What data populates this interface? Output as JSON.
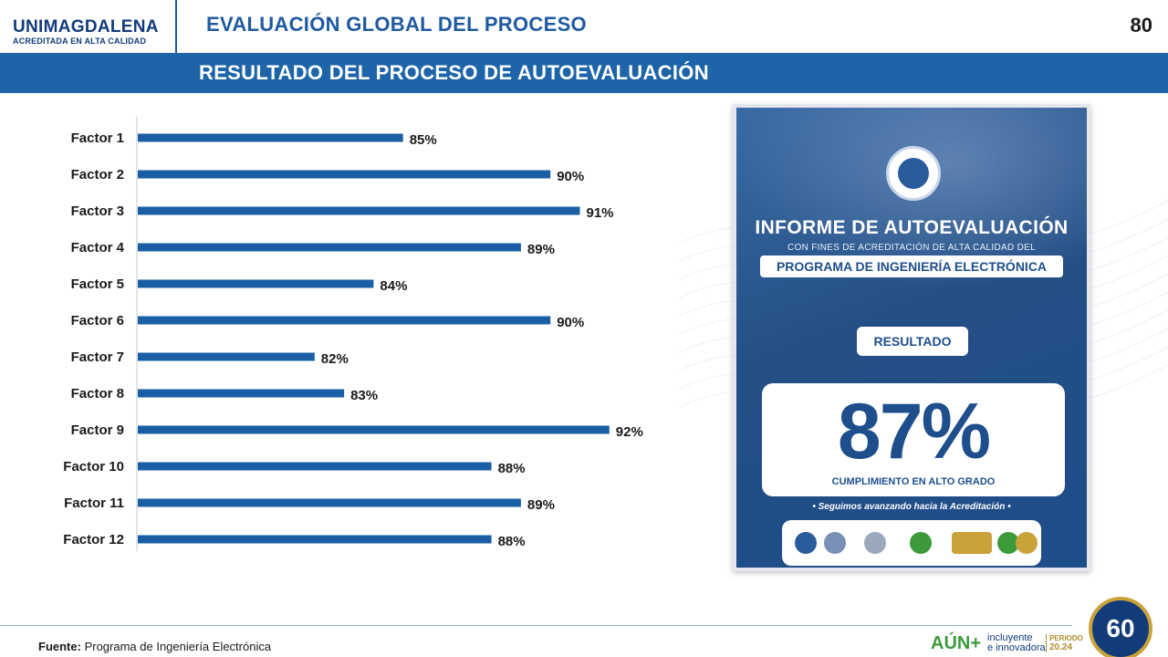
{
  "header": {
    "logo_name": "UNIMAGDALENA",
    "logo_tagline": "ACREDITADA EN ALTA CALIDAD",
    "title": "EVALUACIÓN GLOBAL DEL PROCESO",
    "page_number": "80"
  },
  "subtitle": "RESULTADO DEL PROCESO DE AUTOEVALUACIÓN",
  "chart_data": {
    "type": "bar",
    "orientation": "horizontal",
    "categories": [
      "Factor 1",
      "Factor 2",
      "Factor 3",
      "Factor 4",
      "Factor 5",
      "Factor 6",
      "Factor 7",
      "Factor 8",
      "Factor 9",
      "Factor 10",
      "Factor 11",
      "Factor 12"
    ],
    "values": [
      85,
      90,
      91,
      89,
      84,
      90,
      82,
      83,
      92,
      88,
      89,
      88
    ],
    "value_labels": [
      "85%",
      "90%",
      "91%",
      "89%",
      "84%",
      "90%",
      "82%",
      "83%",
      "92%",
      "88%",
      "89%",
      "88%"
    ],
    "title": "",
    "xlabel": "",
    "ylabel": "",
    "grid": false,
    "legend": "none",
    "bar_color": "#1a5fa5"
  },
  "poster": {
    "title": "INFORME DE AUTOEVALUACIÓN",
    "subtitle": "CON FINES DE ACREDITACIÓN DE ALTA CALIDAD DEL",
    "program": "PROGRAMA DE INGENIERÍA ELECTRÓNICA",
    "result_label": "RESULTADO",
    "result_value": "87%",
    "result_caption": "CUMPLIMIENTO EN ALTO GRADO",
    "tagline": "• Seguimos avanzando hacia la Acreditación •"
  },
  "footer": {
    "source_label": "Fuente:",
    "source_text": "Programa de Ingeniería Electrónica",
    "aun_brand": "AÚN+",
    "aun_line1": "incluyente",
    "aun_line2": "e innovadora",
    "periodo_label": "PERIODO",
    "periodo_value": "20.24",
    "anniversary": "60"
  },
  "colors": {
    "primary_blue": "#1d64a8",
    "title_blue": "#1f5aa0",
    "bar_blue": "#1a5fa5",
    "poster_blue": "#1e4f8c"
  }
}
